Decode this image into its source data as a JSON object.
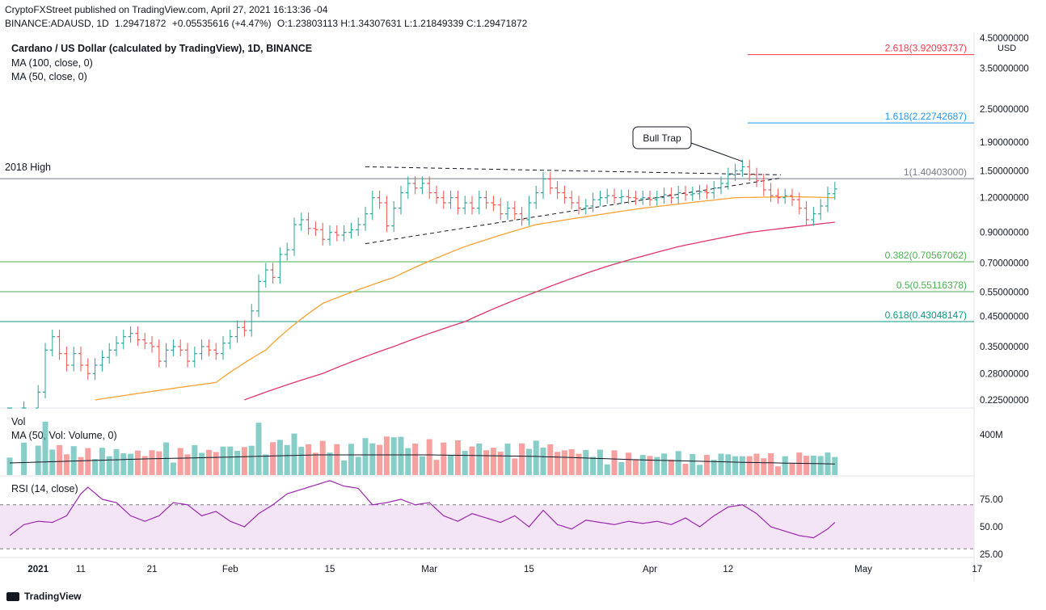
{
  "header": {
    "line1_author": "CryptoFXStreet",
    "line1_rest": "published on TradingView.com, April 27, 2021 16:13:36 -04",
    "symbol": "BINANCE:ADAUSD, 1D",
    "last": "1.29471872",
    "change": "+0.05535616 (+4.47%)",
    "ohlc": [
      {
        "k": "O:",
        "v": "1.23803113"
      },
      {
        "k": "H:",
        "v": "1.34307631"
      },
      {
        "k": "L:",
        "v": "1.21849339"
      },
      {
        "k": "C:",
        "v": "1.29471872"
      }
    ]
  },
  "legend": {
    "title": "Cardano / US Dollar (calculated by TradingView), 1D, BINANCE",
    "ma100": "MA (100, close, 0)",
    "ma50": "MA (50, close, 0)",
    "vol": "Vol",
    "vol_ma": "MA (50, Vol: Volume, 0)",
    "rsi": "RSI (14, close)"
  },
  "colors": {
    "up": "#26a69a",
    "down": "#ef5350",
    "ma50": "#f7a233",
    "ma100": "#e0336e",
    "fib1": "#787b86",
    "fib1618": "#2196f3",
    "fib2618": "#f23645",
    "fib_green": "#4caf50",
    "fib_teal": "#089981",
    "rsi_line": "#9c27b0",
    "rsi_band": "#f3e5f5"
  },
  "chart_data": {
    "type": "candlestick",
    "price_axis": {
      "scale": "log",
      "unit": "USD",
      "ticks": [
        0.225,
        0.28,
        0.35,
        0.45,
        0.55,
        0.7,
        0.9,
        1.2,
        1.5,
        1.9,
        2.5,
        3.5,
        4.5
      ],
      "tick_labels": [
        "0.22500000",
        "0.28000000",
        "0.35000000",
        "0.45000000",
        "0.55000000",
        "0.70000000",
        "0.90000000",
        "1.20000000",
        "1.50000000",
        "1.90000000",
        "2.50000000",
        "3.50000000",
        "4.50000000"
      ]
    },
    "time_axis": {
      "labels": [
        {
          "day": 5,
          "text": "2021"
        },
        {
          "day": 11,
          "text": "11"
        },
        {
          "day": 21,
          "text": "21"
        },
        {
          "day": 32,
          "text": "Feb"
        },
        {
          "day": 46,
          "text": "15"
        },
        {
          "day": 60,
          "text": "Mar"
        },
        {
          "day": 74,
          "text": "15"
        },
        {
          "day": 91,
          "text": "Apr"
        },
        {
          "day": 102,
          "text": "12"
        },
        {
          "day": 121,
          "text": "May"
        },
        {
          "day": 137,
          "text": "17"
        }
      ]
    },
    "fib_levels": [
      {
        "ratio": "2.618",
        "price": 3.92093737,
        "label": "2.618(3.92093737)",
        "color_key": "fib2618"
      },
      {
        "ratio": "1.618",
        "price": 2.22742687,
        "label": "1.618(2.22742687)",
        "color_key": "fib1618"
      },
      {
        "ratio": "1",
        "price": 1.40403,
        "label": "1(1.40403000)",
        "color_key": "fib1"
      },
      {
        "ratio": "0.382",
        "price": 0.70567062,
        "label": "0.382(0.70567062)",
        "color_key": "fib_green"
      },
      {
        "ratio": "0.5",
        "price": 0.55116378,
        "label": "0.5(0.55116378)",
        "color_key": "fib_green"
      },
      {
        "ratio": "0.618",
        "price": 0.43048147,
        "label": "0.618(0.43048147)",
        "color_key": "fib_teal"
      }
    ],
    "annotations": {
      "high_2018": "2018 High",
      "bull_trap": "Bull Trap"
    },
    "trendlines": {
      "upper": [
        {
          "day": 51,
          "price": 1.55
        },
        {
          "day": 106,
          "price": 1.44
        }
      ],
      "lower": [
        {
          "day": 51,
          "price": 0.82
        },
        {
          "day": 106,
          "price": 1.44
        }
      ]
    },
    "anchors_close": [
      [
        1,
        0.18
      ],
      [
        3,
        0.21
      ],
      [
        5,
        0.24
      ],
      [
        6,
        0.34
      ],
      [
        7,
        0.38
      ],
      [
        8,
        0.33
      ],
      [
        9,
        0.3
      ],
      [
        10,
        0.33
      ],
      [
        11,
        0.3
      ],
      [
        12,
        0.28
      ],
      [
        13,
        0.3
      ],
      [
        14,
        0.32
      ],
      [
        15,
        0.34
      ],
      [
        16,
        0.36
      ],
      [
        17,
        0.38
      ],
      [
        18,
        0.39
      ],
      [
        19,
        0.37
      ],
      [
        20,
        0.36
      ],
      [
        21,
        0.35
      ],
      [
        22,
        0.31
      ],
      [
        23,
        0.34
      ],
      [
        24,
        0.35
      ],
      [
        25,
        0.34
      ],
      [
        26,
        0.31
      ],
      [
        27,
        0.33
      ],
      [
        28,
        0.35
      ],
      [
        29,
        0.34
      ],
      [
        30,
        0.33
      ],
      [
        31,
        0.36
      ],
      [
        32,
        0.38
      ],
      [
        33,
        0.41
      ],
      [
        34,
        0.4
      ],
      [
        35,
        0.47
      ],
      [
        36,
        0.6
      ],
      [
        37,
        0.66
      ],
      [
        38,
        0.62
      ],
      [
        39,
        0.75
      ],
      [
        40,
        0.78
      ],
      [
        41,
        0.96
      ],
      [
        42,
        1.0
      ],
      [
        43,
        0.93
      ],
      [
        44,
        0.92
      ],
      [
        45,
        0.85
      ],
      [
        46,
        0.9
      ],
      [
        47,
        0.88
      ],
      [
        48,
        0.9
      ],
      [
        49,
        0.92
      ],
      [
        50,
        0.96
      ],
      [
        51,
        1.05
      ],
      [
        52,
        1.2
      ],
      [
        53,
        1.15
      ],
      [
        54,
        0.95
      ],
      [
        55,
        1.1
      ],
      [
        56,
        1.25
      ],
      [
        57,
        1.35
      ],
      [
        58,
        1.3
      ],
      [
        59,
        1.35
      ],
      [
        60,
        1.25
      ],
      [
        61,
        1.2
      ],
      [
        62,
        1.15
      ],
      [
        63,
        1.2
      ],
      [
        64,
        1.1
      ],
      [
        65,
        1.15
      ],
      [
        66,
        1.1
      ],
      [
        67,
        1.2
      ],
      [
        68,
        1.15
      ],
      [
        69,
        1.13
      ],
      [
        70,
        1.05
      ],
      [
        71,
        1.1
      ],
      [
        72,
        1.05
      ],
      [
        73,
        1.0
      ],
      [
        74,
        1.15
      ],
      [
        75,
        1.25
      ],
      [
        76,
        1.4
      ],
      [
        77,
        1.3
      ],
      [
        78,
        1.25
      ],
      [
        79,
        1.2
      ],
      [
        80,
        1.15
      ],
      [
        81,
        1.1
      ],
      [
        82,
        1.12
      ],
      [
        83,
        1.18
      ],
      [
        84,
        1.2
      ],
      [
        85,
        1.22
      ],
      [
        86,
        1.2
      ],
      [
        87,
        1.21
      ],
      [
        88,
        1.2
      ],
      [
        89,
        1.19
      ],
      [
        90,
        1.2
      ],
      [
        91,
        1.18
      ],
      [
        92,
        1.2
      ],
      [
        93,
        1.23
      ],
      [
        94,
        1.2
      ],
      [
        95,
        1.25
      ],
      [
        96,
        1.23
      ],
      [
        97,
        1.24
      ],
      [
        98,
        1.26
      ],
      [
        99,
        1.25
      ],
      [
        100,
        1.3
      ],
      [
        101,
        1.35
      ],
      [
        102,
        1.45
      ],
      [
        103,
        1.5
      ],
      [
        104,
        1.55
      ],
      [
        105,
        1.45
      ],
      [
        106,
        1.38
      ],
      [
        107,
        1.28
      ],
      [
        108,
        1.22
      ],
      [
        109,
        1.2
      ],
      [
        110,
        1.22
      ],
      [
        111,
        1.18
      ],
      [
        112,
        1.1
      ],
      [
        113,
        1.0
      ],
      [
        114,
        1.05
      ],
      [
        115,
        1.12
      ],
      [
        116,
        1.24
      ],
      [
        117,
        1.29
      ]
    ],
    "ma50_anchors": [
      [
        13,
        0.225
      ],
      [
        30,
        0.26
      ],
      [
        37,
        0.34
      ],
      [
        45,
        0.5
      ],
      [
        55,
        0.62
      ],
      [
        65,
        0.8
      ],
      [
        75,
        0.96
      ],
      [
        90,
        1.1
      ],
      [
        103,
        1.2
      ],
      [
        111,
        1.21
      ],
      [
        117,
        1.2
      ]
    ],
    "ma100_anchors": [
      [
        34,
        0.225
      ],
      [
        45,
        0.28
      ],
      [
        55,
        0.35
      ],
      [
        65,
        0.43
      ],
      [
        75,
        0.55
      ],
      [
        85,
        0.68
      ],
      [
        95,
        0.8
      ],
      [
        105,
        0.9
      ],
      [
        117,
        0.98
      ]
    ],
    "volume_axis": {
      "label": "400M",
      "value": 400
    },
    "volume_ma_anchors": [
      [
        1,
        120
      ],
      [
        20,
        160
      ],
      [
        30,
        175
      ],
      [
        44,
        200
      ],
      [
        60,
        200
      ],
      [
        75,
        185
      ],
      [
        90,
        150
      ],
      [
        105,
        125
      ],
      [
        117,
        110
      ]
    ],
    "rsi_axis": {
      "ticks": [
        25,
        50,
        75
      ],
      "tick_labels": [
        "25.00",
        "50.00",
        "75.00"
      ],
      "band": [
        30,
        70
      ]
    },
    "rsi_anchors": [
      [
        1,
        42
      ],
      [
        3,
        52
      ],
      [
        5,
        55
      ],
      [
        7,
        54
      ],
      [
        9,
        60
      ],
      [
        11,
        80
      ],
      [
        12,
        86
      ],
      [
        14,
        75
      ],
      [
        16,
        72
      ],
      [
        18,
        60
      ],
      [
        20,
        55
      ],
      [
        22,
        60
      ],
      [
        24,
        72
      ],
      [
        26,
        70
      ],
      [
        28,
        60
      ],
      [
        30,
        64
      ],
      [
        32,
        55
      ],
      [
        34,
        50
      ],
      [
        36,
        62
      ],
      [
        38,
        70
      ],
      [
        40,
        80
      ],
      [
        42,
        84
      ],
      [
        44,
        88
      ],
      [
        46,
        92
      ],
      [
        48,
        87
      ],
      [
        50,
        85
      ],
      [
        52,
        70
      ],
      [
        54,
        72
      ],
      [
        56,
        75
      ],
      [
        58,
        70
      ],
      [
        60,
        72
      ],
      [
        62,
        60
      ],
      [
        64,
        55
      ],
      [
        66,
        62
      ],
      [
        68,
        58
      ],
      [
        70,
        54
      ],
      [
        72,
        60
      ],
      [
        74,
        50
      ],
      [
        76,
        65
      ],
      [
        78,
        52
      ],
      [
        80,
        48
      ],
      [
        82,
        56
      ],
      [
        84,
        54
      ],
      [
        86,
        52
      ],
      [
        88,
        55
      ],
      [
        90,
        53
      ],
      [
        92,
        55
      ],
      [
        94,
        52
      ],
      [
        96,
        58
      ],
      [
        98,
        50
      ],
      [
        100,
        60
      ],
      [
        102,
        68
      ],
      [
        104,
        70
      ],
      [
        106,
        62
      ],
      [
        108,
        50
      ],
      [
        110,
        46
      ],
      [
        112,
        42
      ],
      [
        114,
        40
      ],
      [
        116,
        48
      ],
      [
        117,
        54
      ]
    ],
    "rsi_value": "50.00"
  },
  "footer": {
    "brand": "TradingView"
  }
}
